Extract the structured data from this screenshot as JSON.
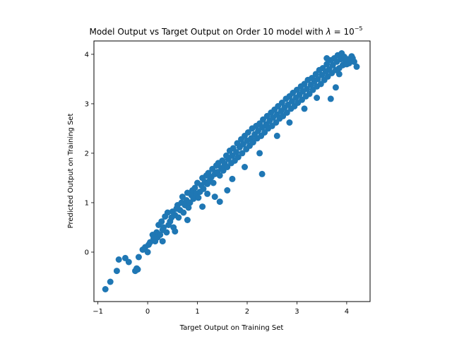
{
  "chart_data": {
    "type": "scatter",
    "title_main": "Model Output vs Target Output on Order 10 model with ",
    "title_lambda": "λ",
    "title_eq": " = 10",
    "title_exp": "−5",
    "xlabel": "Target Output on Training Set",
    "ylabel": "Predicted Output on Training Set",
    "xlim": [
      -1.08,
      4.47
    ],
    "ylim": [
      -1.0,
      4.27
    ],
    "x_ticks": [
      -1,
      0,
      1,
      2,
      3,
      4
    ],
    "y_ticks": [
      0,
      1,
      2,
      3,
      4
    ],
    "x_tick_labels": [
      "−1",
      "0",
      "1",
      "2",
      "3",
      "4"
    ],
    "y_tick_labels": [
      "0",
      "1",
      "2",
      "3",
      "4"
    ],
    "grid": false,
    "marker_color": "#1f77b4",
    "series": [
      {
        "points_note": "",
        "x": [
          -0.85,
          -0.75,
          -0.62,
          -0.58,
          -0.45,
          -0.38,
          -0.25,
          -0.22,
          -0.2,
          -0.18,
          -0.1,
          -0.05,
          0.0,
          0.02,
          0.05,
          0.1,
          0.12,
          0.15,
          0.18,
          0.2,
          0.22,
          0.25,
          0.28,
          0.3,
          0.32,
          0.35,
          0.38,
          0.4,
          0.42,
          0.45,
          0.48,
          0.5,
          0.52,
          0.55,
          0.58,
          0.6,
          0.62,
          0.65,
          0.68,
          0.7,
          0.72,
          0.75,
          0.78,
          0.8,
          0.82,
          0.85,
          0.88,
          0.9,
          0.92,
          0.95,
          0.98,
          1.0,
          1.02,
          1.05,
          1.08,
          1.1,
          1.12,
          1.15,
          1.18,
          1.2,
          1.22,
          1.25,
          1.28,
          1.3,
          1.32,
          1.35,
          1.38,
          1.4,
          1.42,
          1.45,
          1.48,
          1.5,
          1.52,
          1.55,
          1.58,
          1.6,
          1.62,
          1.65,
          1.68,
          1.7,
          1.72,
          1.75,
          1.78,
          1.8,
          1.82,
          1.85,
          1.88,
          1.9,
          1.92,
          1.95,
          1.98,
          2.0,
          2.02,
          2.05,
          2.08,
          2.1,
          2.12,
          2.15,
          2.18,
          2.2,
          2.22,
          2.25,
          2.28,
          2.3,
          2.32,
          2.35,
          2.38,
          2.4,
          2.42,
          2.45,
          2.48,
          2.5,
          2.52,
          2.55,
          2.58,
          2.6,
          2.62,
          2.65,
          2.68,
          2.7,
          2.72,
          2.75,
          2.78,
          2.8,
          2.82,
          2.85,
          2.88,
          2.9,
          2.92,
          2.95,
          2.98,
          3.0,
          3.02,
          3.05,
          3.08,
          3.1,
          3.12,
          3.15,
          3.18,
          3.2,
          3.22,
          3.25,
          3.28,
          3.3,
          3.32,
          3.35,
          3.38,
          3.4,
          3.42,
          3.45,
          3.48,
          3.5,
          3.52,
          3.55,
          3.58,
          3.6,
          3.62,
          3.65,
          3.68,
          3.7,
          3.72,
          3.75,
          3.78,
          3.8,
          3.82,
          3.85,
          3.88,
          3.9,
          3.92,
          3.95,
          3.98,
          4.0,
          4.02,
          4.05,
          4.08,
          4.1,
          4.12,
          4.15,
          4.2,
          3.68,
          3.85,
          3.78,
          3.6,
          1.45,
          1.6,
          2.3,
          1.2,
          0.3,
          0.55,
          0.8,
          1.1,
          1.35,
          1.7,
          1.95,
          2.25,
          2.6,
          2.85,
          3.15,
          3.4
        ],
        "y": [
          -0.75,
          -0.6,
          -0.38,
          -0.15,
          -0.12,
          -0.2,
          -0.38,
          -0.33,
          -0.35,
          -0.1,
          0.05,
          0.1,
          0.0,
          0.15,
          0.2,
          0.35,
          0.28,
          0.22,
          0.4,
          0.3,
          0.55,
          0.35,
          0.62,
          0.45,
          0.5,
          0.72,
          0.4,
          0.8,
          0.55,
          0.62,
          0.7,
          0.82,
          0.5,
          0.75,
          0.88,
          0.95,
          0.7,
          0.85,
          1.0,
          1.12,
          0.8,
          0.95,
          1.05,
          1.2,
          0.9,
          1.0,
          1.15,
          1.25,
          1.08,
          1.3,
          1.18,
          1.4,
          1.1,
          1.22,
          1.35,
          1.5,
          1.28,
          1.42,
          1.55,
          1.38,
          1.6,
          1.45,
          1.52,
          1.68,
          1.4,
          1.58,
          1.75,
          1.62,
          1.8,
          1.55,
          1.7,
          1.85,
          1.65,
          1.78,
          1.95,
          1.72,
          1.88,
          2.05,
          1.8,
          1.95,
          2.1,
          1.85,
          2.02,
          2.2,
          1.92,
          2.12,
          2.28,
          2.0,
          2.18,
          2.35,
          2.08,
          2.25,
          2.42,
          2.15,
          2.3,
          2.5,
          2.22,
          2.38,
          2.55,
          2.3,
          2.45,
          2.6,
          2.35,
          2.52,
          2.68,
          2.42,
          2.58,
          2.75,
          2.5,
          2.65,
          2.82,
          2.55,
          2.72,
          2.88,
          2.62,
          2.78,
          2.95,
          2.7,
          2.85,
          3.02,
          2.75,
          2.92,
          3.1,
          2.82,
          2.98,
          3.15,
          2.9,
          3.05,
          3.22,
          2.95,
          3.12,
          3.28,
          3.02,
          3.18,
          3.35,
          3.08,
          3.25,
          3.4,
          3.15,
          3.3,
          3.48,
          3.2,
          3.38,
          3.52,
          3.28,
          3.45,
          3.6,
          3.35,
          3.5,
          3.68,
          3.4,
          3.58,
          3.72,
          3.48,
          3.65,
          3.8,
          3.55,
          3.7,
          3.88,
          3.62,
          3.78,
          3.92,
          3.68,
          3.85,
          3.98,
          3.72,
          3.9,
          4.02,
          3.78,
          3.95,
          3.85,
          3.8,
          3.9,
          3.82,
          3.88,
          3.96,
          3.92,
          3.85,
          3.75,
          3.1,
          3.6,
          3.33,
          3.92,
          1.02,
          1.25,
          1.58,
          1.18,
          0.22,
          0.42,
          0.65,
          0.92,
          1.12,
          1.48,
          1.72,
          2.0,
          2.35,
          2.62,
          2.9,
          3.12
        ]
      }
    ]
  }
}
